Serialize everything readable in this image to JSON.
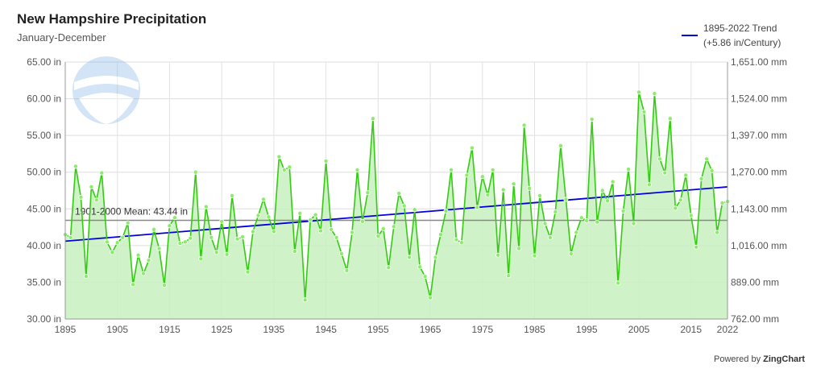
{
  "chart_data": {
    "type": "line",
    "title": "New Hampshire Precipitation",
    "subtitle": "January-December",
    "y_left_ticks": [
      "30.00 in",
      "35.00 in",
      "40.00 in",
      "45.00 in",
      "50.00 in",
      "55.00 in",
      "60.00 in",
      "65.00 in"
    ],
    "y_right_ticks": [
      "762.00 mm",
      "889.00 mm",
      "1,016.00 mm",
      "1,143.00 mm",
      "1,270.00 mm",
      "1,397.00 mm",
      "1,524.00 mm",
      "1,651.00 mm"
    ],
    "x_ticks": [
      "1895",
      "1905",
      "1915",
      "1925",
      "1935",
      "1945",
      "1955",
      "1965",
      "1975",
      "1985",
      "1995",
      "2005",
      "2015",
      "2022"
    ],
    "ylim": [
      30,
      65
    ],
    "xlim": [
      1895,
      2022
    ],
    "grid": true,
    "legend_placement": "top-right",
    "series": [
      {
        "name": "Precipitation",
        "color": "#33cc11",
        "fill": "#c8f0c0",
        "x_start": 1895,
        "values": [
          41.5,
          41.1,
          50.8,
          46.6,
          35.8,
          48.0,
          46.2,
          49.9,
          40.5,
          39.1,
          40.4,
          41.1,
          43.1,
          34.7,
          38.7,
          36.2,
          38.0,
          42.2,
          39.6,
          34.6,
          42.7,
          43.8,
          40.3,
          40.5,
          41.0,
          50.0,
          38.2,
          45.3,
          41.1,
          39.1,
          43.3,
          38.8,
          46.8,
          40.9,
          41.2,
          36.4,
          41.9,
          44.1,
          46.3,
          43.9,
          41.9,
          52.1,
          50.3,
          50.7,
          39.2,
          44.4,
          32.6,
          43.5,
          44.2,
          42.0,
          51.5,
          42.2,
          41.1,
          38.9,
          36.6,
          41.8,
          50.3,
          43.3,
          47.2,
          57.3,
          41.3,
          42.3,
          37.0,
          42.6,
          47.1,
          45.4,
          38.4,
          44.9,
          37.1,
          35.8,
          32.9,
          38.4,
          41.5,
          44.7,
          50.3,
          40.8,
          40.4,
          49.6,
          53.3,
          45.2,
          49.4,
          46.9,
          50.3,
          38.7,
          47.6,
          35.9,
          48.4,
          39.6,
          56.4,
          47.8,
          38.6,
          46.8,
          43.0,
          41.1,
          44.6,
          53.6,
          46.3,
          38.9,
          41.8,
          43.8,
          43.4,
          57.2,
          43.2,
          47.5,
          46.1,
          48.7,
          34.9,
          44.7,
          50.4,
          43.0,
          60.9,
          58.2,
          48.3,
          60.7,
          51.8,
          49.9,
          57.3,
          45.1,
          46.2,
          49.6,
          44.1,
          39.8,
          49.1,
          51.8,
          50.2,
          41.8,
          45.8,
          46.0
        ]
      },
      {
        "name": "1895-2022 Trend",
        "label": "1895-2022 Trend\n(+5.86 in/Century)",
        "color": "#0000dd",
        "start": [
          1895,
          40.6
        ],
        "end": [
          2022,
          48.0
        ]
      }
    ],
    "mean_line": {
      "label": "1901-2000 Mean: 43.44 in",
      "value": 43.44,
      "color": "#888888"
    }
  },
  "credit": {
    "prefix": "Powered by",
    "brand": "ZingChart"
  }
}
